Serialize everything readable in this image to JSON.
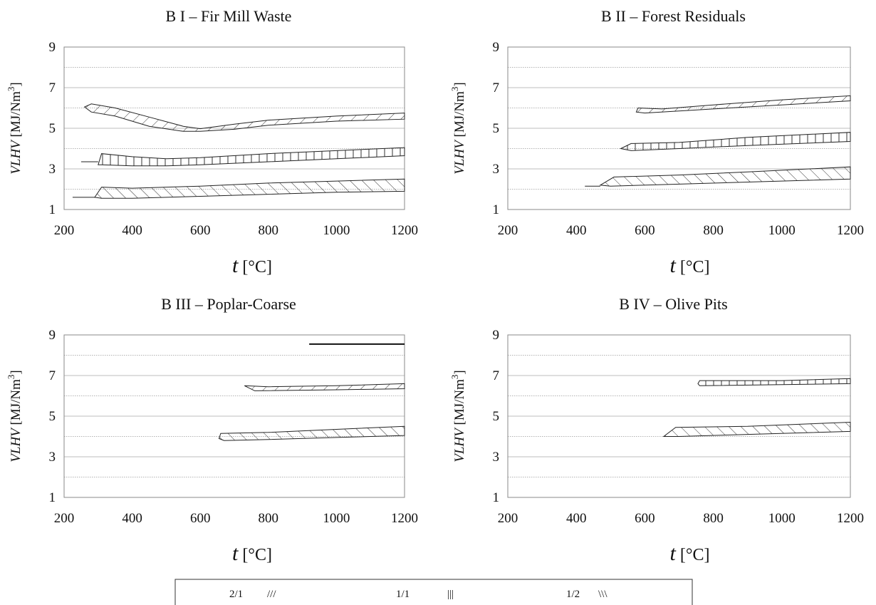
{
  "figure": {
    "legend": [
      {
        "label": "2/1",
        "hatch": "///"
      },
      {
        "label": "1/1",
        "hatch": "|||"
      },
      {
        "label": "1/2",
        "hatch": "\\\\\\"
      }
    ]
  },
  "chart_data": [
    {
      "type": "area",
      "title": "B I – Fir Mill Waste",
      "ylabel": "VLHV [MJ/Nm3]",
      "xlabel": "t [°C]",
      "xlim": [
        200,
        1200
      ],
      "ylim": [
        1,
        9
      ],
      "xticks": [
        200,
        400,
        600,
        800,
        1000,
        1200
      ],
      "yticks": [
        1,
        3,
        5,
        7,
        9
      ],
      "grid": true,
      "series": [
        {
          "name": "2/1",
          "hatch": "diag-right",
          "upper": [
            [
              260,
              6.05
            ],
            [
              280,
              6.2
            ],
            [
              350,
              6.0
            ],
            [
              450,
              5.55
            ],
            [
              550,
              5.1
            ],
            [
              600,
              4.98
            ],
            [
              700,
              5.2
            ],
            [
              800,
              5.4
            ],
            [
              1000,
              5.6
            ],
            [
              1200,
              5.75
            ]
          ],
          "lower": [
            [
              260,
              6.05
            ],
            [
              280,
              5.8
            ],
            [
              350,
              5.6
            ],
            [
              450,
              5.1
            ],
            [
              550,
              4.85
            ],
            [
              600,
              4.85
            ],
            [
              700,
              4.95
            ],
            [
              800,
              5.15
            ],
            [
              1000,
              5.35
            ],
            [
              1200,
              5.45
            ]
          ]
        },
        {
          "name": "1/1",
          "hatch": "vertical",
          "upper": [
            [
              300,
              3.2
            ],
            [
              310,
              3.75
            ],
            [
              400,
              3.6
            ],
            [
              500,
              3.5
            ],
            [
              600,
              3.55
            ],
            [
              800,
              3.75
            ],
            [
              1000,
              3.9
            ],
            [
              1200,
              4.05
            ]
          ],
          "lower": [
            [
              300,
              3.2
            ],
            [
              310,
              3.2
            ],
            [
              400,
              3.15
            ],
            [
              500,
              3.15
            ],
            [
              600,
              3.2
            ],
            [
              800,
              3.35
            ],
            [
              1000,
              3.5
            ],
            [
              1200,
              3.65
            ]
          ],
          "tail": [
            [
              250,
              3.35
            ],
            [
              300,
              3.35
            ]
          ]
        },
        {
          "name": "1/2",
          "hatch": "diag-left",
          "upper": [
            [
              290,
              1.6
            ],
            [
              310,
              2.1
            ],
            [
              400,
              2.05
            ],
            [
              600,
              2.15
            ],
            [
              800,
              2.3
            ],
            [
              1000,
              2.4
            ],
            [
              1200,
              2.5
            ]
          ],
          "lower": [
            [
              290,
              1.6
            ],
            [
              310,
              1.55
            ],
            [
              400,
              1.55
            ],
            [
              600,
              1.65
            ],
            [
              800,
              1.75
            ],
            [
              1000,
              1.85
            ],
            [
              1200,
              1.9
            ]
          ],
          "tail": [
            [
              225,
              1.6
            ],
            [
              290,
              1.6
            ]
          ]
        }
      ]
    },
    {
      "type": "area",
      "title": "B II – Forest Residuals",
      "ylabel": "VLHV [MJ/Nm3]",
      "xlabel": "t [°C]",
      "xlim": [
        200,
        1200
      ],
      "ylim": [
        1,
        9
      ],
      "xticks": [
        200,
        400,
        600,
        800,
        1000,
        1200
      ],
      "yticks": [
        1,
        3,
        5,
        7,
        9
      ],
      "grid": true,
      "series": [
        {
          "name": "2/1",
          "hatch": "diag-right",
          "upper": [
            [
              575,
              5.8
            ],
            [
              580,
              6.0
            ],
            [
              650,
              5.95
            ],
            [
              800,
              6.15
            ],
            [
              1000,
              6.4
            ],
            [
              1200,
              6.6
            ]
          ],
          "lower": [
            [
              575,
              5.8
            ],
            [
              600,
              5.75
            ],
            [
              700,
              5.85
            ],
            [
              800,
              5.95
            ],
            [
              1000,
              6.15
            ],
            [
              1200,
              6.35
            ]
          ]
        },
        {
          "name": "1/1",
          "hatch": "vertical",
          "upper": [
            [
              530,
              4.0
            ],
            [
              560,
              4.25
            ],
            [
              700,
              4.3
            ],
            [
              900,
              4.55
            ],
            [
              1200,
              4.8
            ]
          ],
          "lower": [
            [
              530,
              4.0
            ],
            [
              560,
              3.9
            ],
            [
              700,
              4.0
            ],
            [
              900,
              4.15
            ],
            [
              1200,
              4.35
            ]
          ]
        },
        {
          "name": "1/2",
          "hatch": "diag-left",
          "upper": [
            [
              470,
              2.2
            ],
            [
              510,
              2.6
            ],
            [
              700,
              2.7
            ],
            [
              900,
              2.85
            ],
            [
              1200,
              3.1
            ]
          ],
          "lower": [
            [
              470,
              2.2
            ],
            [
              500,
              2.15
            ],
            [
              700,
              2.25
            ],
            [
              900,
              2.35
            ],
            [
              1200,
              2.5
            ]
          ],
          "tail": [
            [
              425,
              2.15
            ],
            [
              470,
              2.15
            ]
          ]
        }
      ]
    },
    {
      "type": "area",
      "title": "B III – Poplar-Coarse",
      "ylabel": "VLHV [MJ/Nm3]",
      "xlabel": "t [°C]",
      "xlim": [
        200,
        1200
      ],
      "ylim": [
        1,
        9
      ],
      "xticks": [
        200,
        400,
        600,
        800,
        1000,
        1200
      ],
      "yticks": [
        1,
        3,
        5,
        7,
        9
      ],
      "grid": true,
      "series": [
        {
          "name": "",
          "hatch": "none",
          "line": [
            [
              920,
              8.55
            ],
            [
              1200,
              8.55
            ]
          ]
        },
        {
          "name": "2/1",
          "hatch": "diag-right",
          "upper": [
            [
              730,
              6.5
            ],
            [
              800,
              6.45
            ],
            [
              1000,
              6.5
            ],
            [
              1200,
              6.6
            ]
          ],
          "lower": [
            [
              730,
              6.5
            ],
            [
              760,
              6.25
            ],
            [
              1000,
              6.3
            ],
            [
              1200,
              6.35
            ]
          ]
        },
        {
          "name": "1/2",
          "hatch": "diag-left",
          "upper": [
            [
              655,
              3.9
            ],
            [
              660,
              4.15
            ],
            [
              800,
              4.2
            ],
            [
              1000,
              4.35
            ],
            [
              1200,
              4.5
            ]
          ],
          "lower": [
            [
              655,
              3.9
            ],
            [
              670,
              3.8
            ],
            [
              800,
              3.85
            ],
            [
              1000,
              3.95
            ],
            [
              1200,
              4.05
            ]
          ]
        }
      ]
    },
    {
      "type": "area",
      "title": "B IV – Olive Pits",
      "ylabel": "VLHV [MJ/Nm3]",
      "xlabel": "t [°C]",
      "xlim": [
        200,
        1200
      ],
      "ylim": [
        1,
        9
      ],
      "xticks": [
        200,
        400,
        600,
        800,
        1000,
        1200
      ],
      "yticks": [
        1,
        3,
        5,
        7,
        9
      ],
      "grid": true,
      "series": [
        {
          "name": "1/1",
          "hatch": "vertical",
          "upper": [
            [
              755,
              6.6
            ],
            [
              760,
              6.75
            ],
            [
              1000,
              6.75
            ],
            [
              1200,
              6.85
            ]
          ],
          "lower": [
            [
              755,
              6.6
            ],
            [
              760,
              6.5
            ],
            [
              1000,
              6.55
            ],
            [
              1200,
              6.6
            ]
          ]
        },
        {
          "name": "1/2",
          "hatch": "diag-left",
          "upper": [
            [
              655,
              4.0
            ],
            [
              690,
              4.45
            ],
            [
              900,
              4.5
            ],
            [
              1200,
              4.7
            ]
          ],
          "lower": [
            [
              655,
              4.0
            ],
            [
              700,
              4.0
            ],
            [
              900,
              4.1
            ],
            [
              1200,
              4.25
            ]
          ]
        }
      ]
    }
  ]
}
